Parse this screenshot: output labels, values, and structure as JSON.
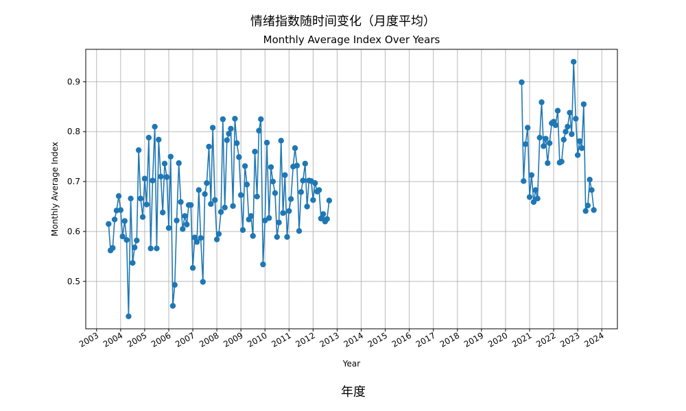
{
  "suptitle": "情绪指数随时间变化（月度平均）",
  "footer_label": "年度",
  "chart_data": {
    "type": "line",
    "title": "Monthly Average Index Over Years",
    "xlabel": "Year",
    "ylabel": "Monthly Average Index",
    "xlim": [
      2002.55,
      2024.65
    ],
    "ylim": [
      0.405,
      0.965
    ],
    "x_ticks": [
      2003,
      2004,
      2005,
      2006,
      2007,
      2008,
      2009,
      2010,
      2011,
      2012,
      2013,
      2014,
      2015,
      2016,
      2017,
      2018,
      2019,
      2020,
      2021,
      2022,
      2023,
      2024
    ],
    "y_ticks": [
      0.5,
      0.6,
      0.7,
      0.8,
      0.9
    ],
    "grid": true,
    "series": [
      {
        "color": "#1f77b4",
        "marker": "circle",
        "segments": [
          [
            [
              2003.5,
              0.615
            ],
            [
              2003.58,
              0.562
            ],
            [
              2003.67,
              0.567
            ],
            [
              2003.75,
              0.624
            ],
            [
              2003.83,
              0.642
            ],
            [
              2003.92,
              0.671
            ],
            [
              2004.0,
              0.643
            ],
            [
              2004.08,
              0.59
            ],
            [
              2004.17,
              0.621
            ],
            [
              2004.25,
              0.583
            ],
            [
              2004.33,
              0.43
            ],
            [
              2004.42,
              0.666
            ],
            [
              2004.5,
              0.537
            ],
            [
              2004.58,
              0.568
            ],
            [
              2004.67,
              0.582
            ],
            [
              2004.75,
              0.763
            ],
            [
              2004.83,
              0.666
            ],
            [
              2004.92,
              0.629
            ],
            [
              2005.0,
              0.706
            ],
            [
              2005.08,
              0.654
            ],
            [
              2005.17,
              0.788
            ],
            [
              2005.25,
              0.566
            ],
            [
              2005.33,
              0.702
            ],
            [
              2005.42,
              0.81
            ],
            [
              2005.5,
              0.566
            ],
            [
              2005.58,
              0.784
            ],
            [
              2005.67,
              0.71
            ],
            [
              2005.75,
              0.638
            ],
            [
              2005.83,
              0.736
            ],
            [
              2005.92,
              0.709
            ],
            [
              2006.0,
              0.607
            ],
            [
              2006.08,
              0.75
            ],
            [
              2006.17,
              0.451
            ],
            [
              2006.25,
              0.493
            ],
            [
              2006.33,
              0.622
            ],
            [
              2006.42,
              0.737
            ],
            [
              2006.5,
              0.659
            ],
            [
              2006.58,
              0.605
            ],
            [
              2006.67,
              0.631
            ],
            [
              2006.75,
              0.614
            ],
            [
              2006.83,
              0.653
            ],
            [
              2006.92,
              0.653
            ],
            [
              2007.0,
              0.527
            ],
            [
              2007.08,
              0.588
            ],
            [
              2007.17,
              0.579
            ],
            [
              2007.25,
              0.683
            ],
            [
              2007.33,
              0.587
            ],
            [
              2007.42,
              0.499
            ],
            [
              2007.5,
              0.675
            ],
            [
              2007.58,
              0.697
            ],
            [
              2007.67,
              0.77
            ],
            [
              2007.75,
              0.655
            ],
            [
              2007.83,
              0.808
            ],
            [
              2007.92,
              0.663
            ],
            [
              2008.0,
              0.584
            ],
            [
              2008.08,
              0.595
            ],
            [
              2008.17,
              0.639
            ],
            [
              2008.25,
              0.825
            ],
            [
              2008.33,
              0.648
            ],
            [
              2008.42,
              0.783
            ],
            [
              2008.5,
              0.796
            ],
            [
              2008.58,
              0.806
            ],
            [
              2008.67,
              0.651
            ],
            [
              2008.75,
              0.826
            ],
            [
              2008.83,
              0.777
            ],
            [
              2008.92,
              0.749
            ],
            [
              2009.0,
              0.673
            ],
            [
              2009.08,
              0.603
            ],
            [
              2009.17,
              0.731
            ],
            [
              2009.25,
              0.694
            ],
            [
              2009.33,
              0.624
            ],
            [
              2009.42,
              0.631
            ],
            [
              2009.5,
              0.591
            ],
            [
              2009.58,
              0.76
            ],
            [
              2009.67,
              0.67
            ],
            [
              2009.75,
              0.802
            ],
            [
              2009.83,
              0.825
            ],
            [
              2009.92,
              0.534
            ],
            [
              2010.0,
              0.622
            ],
            [
              2010.08,
              0.778
            ],
            [
              2010.17,
              0.627
            ],
            [
              2010.25,
              0.729
            ],
            [
              2010.33,
              0.7
            ],
            [
              2010.42,
              0.677
            ],
            [
              2010.5,
              0.589
            ],
            [
              2010.58,
              0.618
            ],
            [
              2010.67,
              0.782
            ],
            [
              2010.75,
              0.637
            ],
            [
              2010.83,
              0.713
            ],
            [
              2010.92,
              0.589
            ],
            [
              2011.0,
              0.641
            ],
            [
              2011.08,
              0.665
            ],
            [
              2011.17,
              0.73
            ],
            [
              2011.25,
              0.767
            ],
            [
              2011.33,
              0.732
            ],
            [
              2011.42,
              0.601
            ],
            [
              2011.5,
              0.679
            ],
            [
              2011.58,
              0.702
            ],
            [
              2011.67,
              0.736
            ],
            [
              2011.75,
              0.65
            ],
            [
              2011.83,
              0.702
            ],
            [
              2011.92,
              0.701
            ],
            [
              2012.0,
              0.663
            ],
            [
              2012.08,
              0.697
            ],
            [
              2012.17,
              0.68
            ],
            [
              2012.25,
              0.683
            ],
            [
              2012.33,
              0.626
            ],
            [
              2012.42,
              0.635
            ],
            [
              2012.5,
              0.62
            ],
            [
              2012.58,
              0.625
            ],
            [
              2012.67,
              0.662
            ]
          ],
          [
            [
              2020.67,
              0.899
            ],
            [
              2020.75,
              0.701
            ],
            [
              2020.83,
              0.775
            ],
            [
              2020.92,
              0.808
            ],
            [
              2021.0,
              0.669
            ],
            [
              2021.08,
              0.713
            ],
            [
              2021.17,
              0.659
            ],
            [
              2021.25,
              0.683
            ],
            [
              2021.33,
              0.666
            ],
            [
              2021.42,
              0.788
            ],
            [
              2021.5,
              0.859
            ],
            [
              2021.58,
              0.771
            ],
            [
              2021.67,
              0.786
            ],
            [
              2021.75,
              0.737
            ],
            [
              2021.83,
              0.777
            ],
            [
              2021.92,
              0.817
            ],
            [
              2022.0,
              0.82
            ],
            [
              2022.08,
              0.813
            ],
            [
              2022.17,
              0.842
            ],
            [
              2022.25,
              0.738
            ],
            [
              2022.33,
              0.74
            ],
            [
              2022.42,
              0.784
            ],
            [
              2022.5,
              0.8
            ],
            [
              2022.58,
              0.81
            ],
            [
              2022.67,
              0.838
            ],
            [
              2022.75,
              0.795
            ],
            [
              2022.83,
              0.94
            ],
            [
              2022.92,
              0.826
            ],
            [
              2023.0,
              0.753
            ],
            [
              2023.08,
              0.781
            ],
            [
              2023.17,
              0.767
            ],
            [
              2023.25,
              0.855
            ],
            [
              2023.33,
              0.641
            ],
            [
              2023.42,
              0.652
            ],
            [
              2023.5,
              0.704
            ],
            [
              2023.58,
              0.683
            ],
            [
              2023.67,
              0.643
            ]
          ]
        ]
      }
    ]
  }
}
